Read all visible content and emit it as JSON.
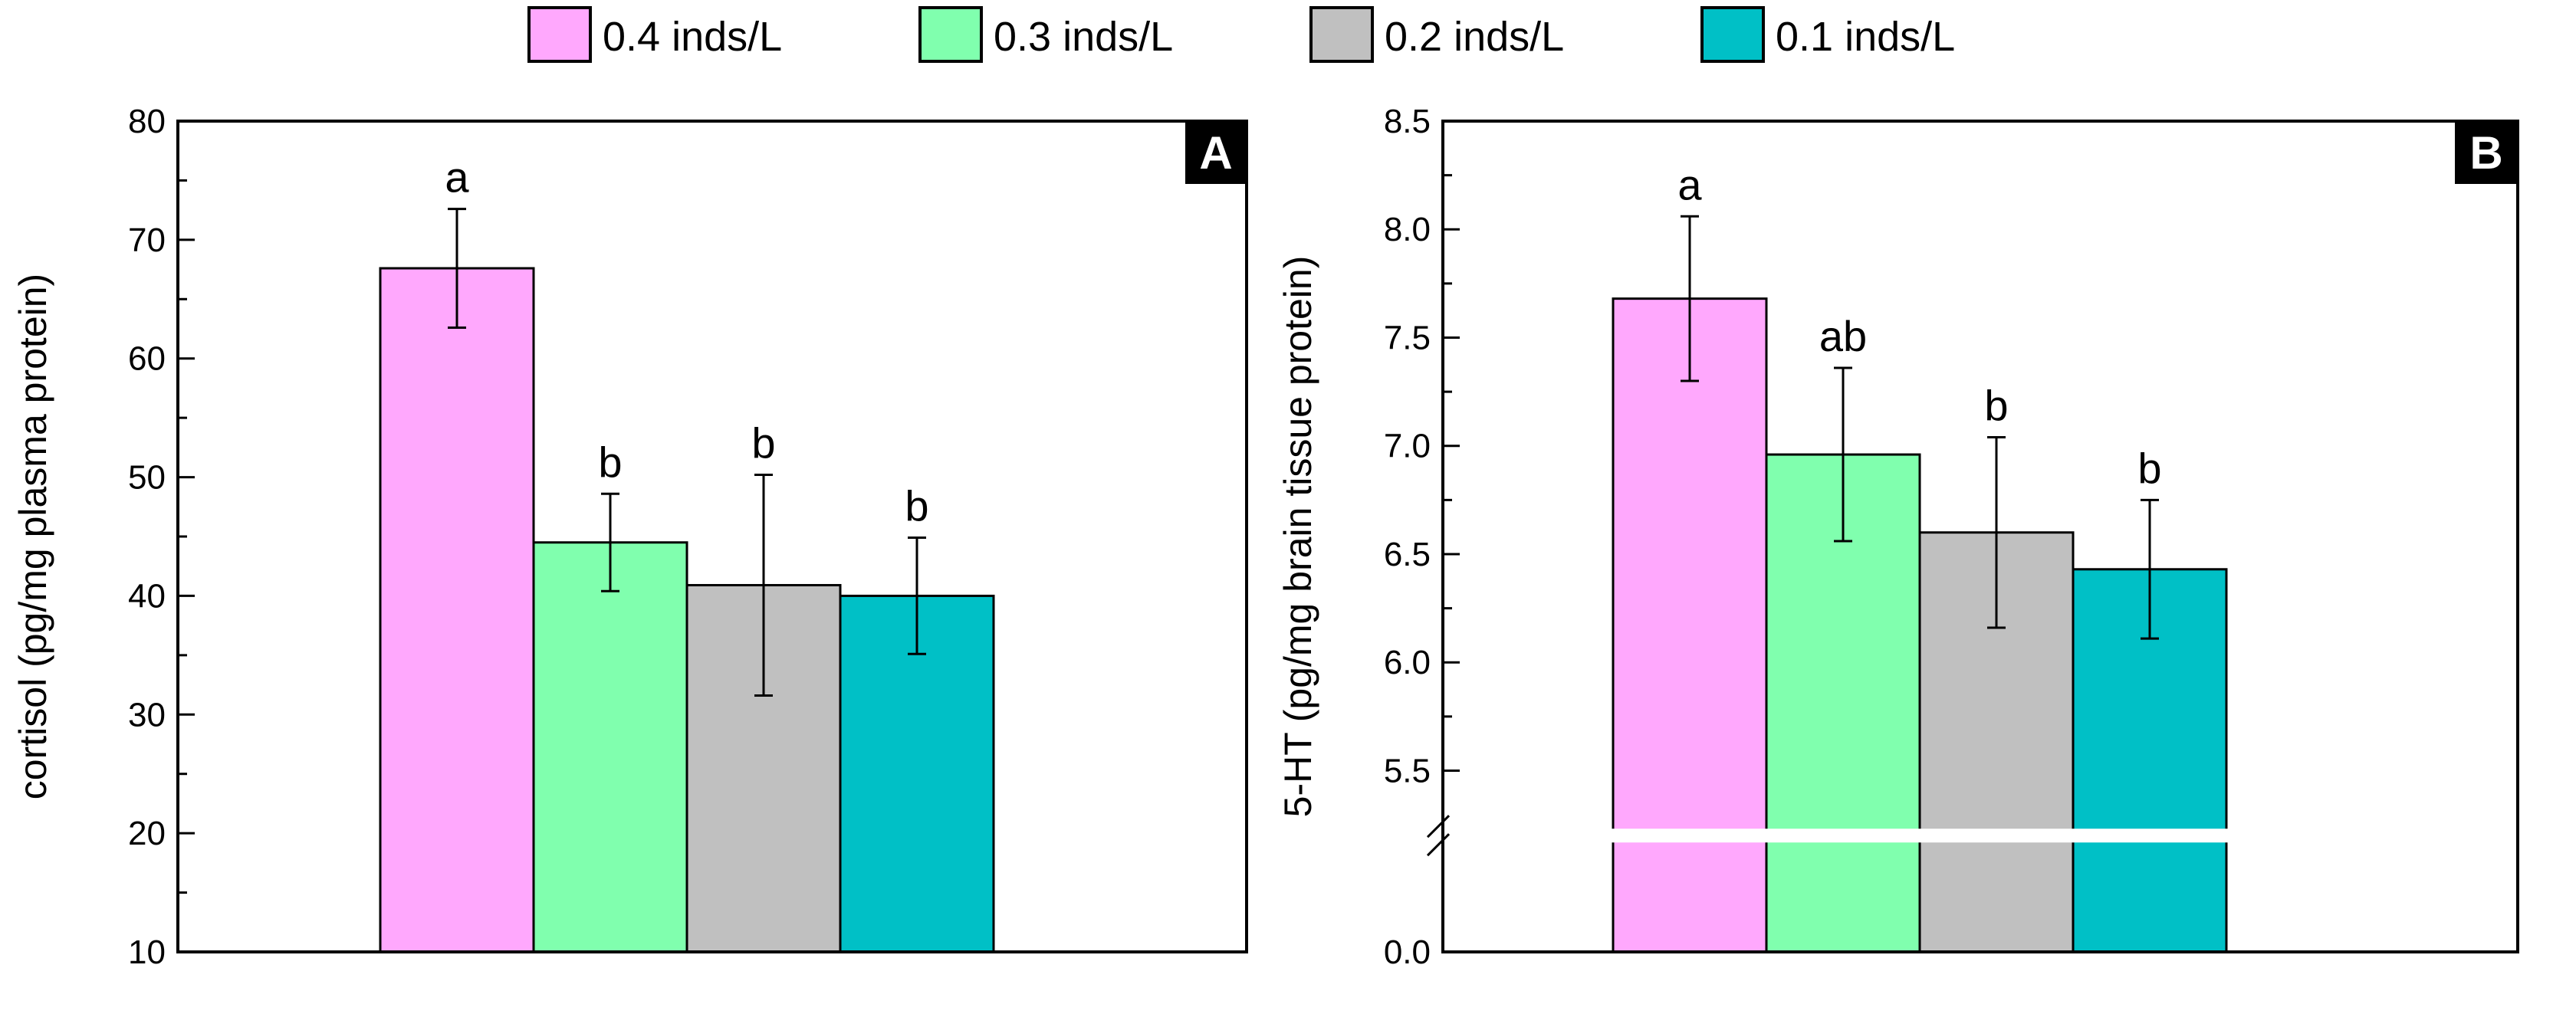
{
  "legend": {
    "items": [
      {
        "label": "0.4 inds/L",
        "color": "#ffa8fd"
      },
      {
        "label": "0.3 inds/L",
        "color": "#80ffae"
      },
      {
        "label": "0.2 inds/L",
        "color": "#c0c0c0"
      },
      {
        "label": "0.1 inds/L",
        "color": "#00c0c6"
      }
    ]
  },
  "chart_data": [
    {
      "type": "bar",
      "panel_label": "A",
      "ylabel": "cortisol (pg/mg plasma protein)",
      "xlabel": "",
      "ylim": [
        10,
        80
      ],
      "yticks": [
        10,
        20,
        30,
        40,
        50,
        60,
        70,
        80
      ],
      "ytick_labels": [
        "10",
        "20",
        "30",
        "40",
        "50",
        "60",
        "70",
        "80"
      ],
      "categories": [
        "0.4 inds/L",
        "0.3 inds/L",
        "0.2 inds/L",
        "0.1 inds/L"
      ],
      "values": [
        67.6,
        44.5,
        40.9,
        40.0
      ],
      "errors": [
        5.0,
        4.1,
        9.3,
        4.9
      ],
      "significance": [
        "a",
        "b",
        "b",
        "b"
      ],
      "colors": [
        "#ffa8fd",
        "#80ffae",
        "#c0c0c0",
        "#00c0c6"
      ]
    },
    {
      "type": "bar",
      "panel_label": "B",
      "ylabel": "5-HT  (pg/mg brain tissue protein)",
      "xlabel": "",
      "ylim": [
        0.0,
        8.5
      ],
      "axis_break": [
        0.0,
        5.2
      ],
      "yticks": [
        0.0,
        5.5,
        6.0,
        6.5,
        7.0,
        7.5,
        8.0,
        8.5
      ],
      "ytick_labels": [
        "0.0",
        "5.5",
        "6.0",
        "6.5",
        "7.0",
        "7.5",
        "8.0",
        "8.5"
      ],
      "categories": [
        "0.4 inds/L",
        "0.3 inds/L",
        "0.2 inds/L",
        "0.1 inds/L"
      ],
      "values": [
        7.68,
        6.96,
        6.6,
        6.43
      ],
      "errors": [
        0.38,
        0.4,
        0.44,
        0.32
      ],
      "significance": [
        "a",
        "ab",
        "b",
        "b"
      ],
      "colors": [
        "#ffa8fd",
        "#80ffae",
        "#c0c0c0",
        "#00c0c6"
      ]
    }
  ]
}
